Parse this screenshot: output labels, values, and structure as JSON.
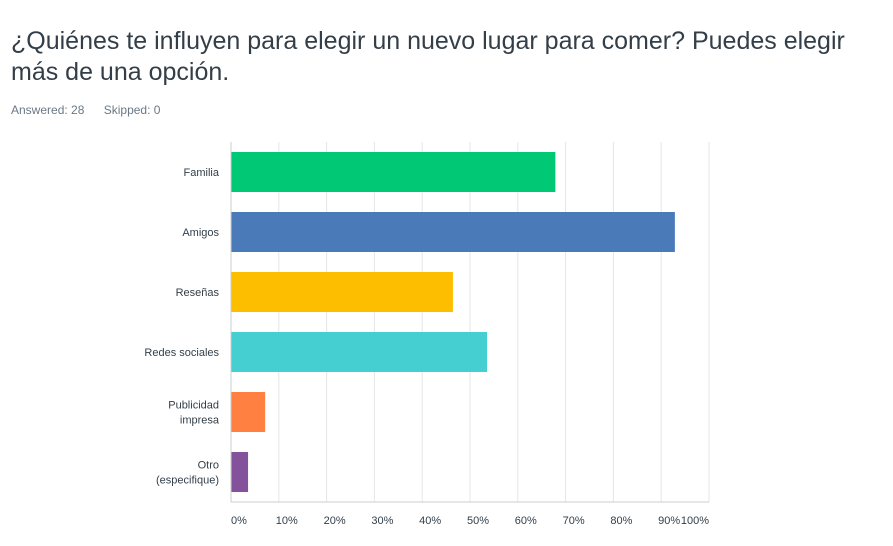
{
  "question": {
    "title": "¿Quiénes te influyen para elegir un nuevo lugar para comer? Puedes elegir más de una opción."
  },
  "stats": {
    "answered": "Answered: 28",
    "skipped": "Skipped: 0"
  },
  "chart_data": {
    "type": "bar",
    "orientation": "horizontal",
    "categories": [
      [
        "Familia"
      ],
      [
        "Amigos"
      ],
      [
        "Reseñas"
      ],
      [
        "Redes sociales"
      ],
      [
        "Publicidad",
        "impresa"
      ],
      [
        "Otro",
        "(especifique)"
      ]
    ],
    "values": [
      67.86,
      92.86,
      46.43,
      53.57,
      7.14,
      3.57
    ],
    "colors": [
      "#00c875",
      "#4a7ab8",
      "#fdbe00",
      "#46cfd1",
      "#ff8040",
      "#83529b"
    ],
    "xlim": [
      0,
      100
    ],
    "xticks": [
      "0%",
      "10%",
      "20%",
      "30%",
      "40%",
      "50%",
      "60%",
      "70%",
      "80%",
      "90%",
      "100%"
    ],
    "grid": true,
    "legend": "none"
  }
}
